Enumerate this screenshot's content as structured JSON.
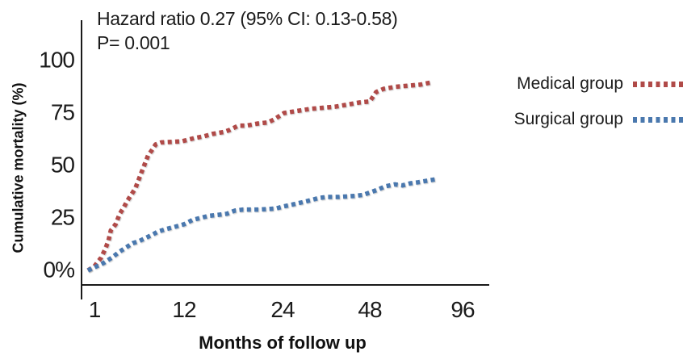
{
  "chart_data": {
    "type": "line",
    "annotation": {
      "line1": "Hazard ratio 0.27 (95% CI: 0.13-0.58)",
      "line2": "P= 0.001"
    },
    "xlabel": "Months of follow up",
    "ylabel": "Cumulative mortality (%)",
    "x_tick_labels": [
      "1",
      "12",
      "24",
      "48",
      "96"
    ],
    "x_tick_values": [
      1,
      12,
      24,
      48,
      96
    ],
    "y_tick_labels": [
      "100",
      "75",
      "50",
      "25",
      "0%"
    ],
    "y_tick_values": [
      100,
      75,
      50,
      25,
      0
    ],
    "ylim": [
      0,
      100
    ],
    "x_scale": "log-like (tick spacing approximately equal: 1, 12, 24, 48, 96)",
    "grid": false,
    "legend_position": "right",
    "line_style": "square-dotted",
    "axis_color": "#1a1a1a",
    "series": [
      {
        "name": "Medical group",
        "color": "#b04a48",
        "points_months_percent": [
          [
            0.2,
            0
          ],
          [
            1,
            2
          ],
          [
            1.8,
            6
          ],
          [
            2.3,
            10
          ],
          [
            2.7,
            14
          ],
          [
            3,
            19
          ],
          [
            3.6,
            22
          ],
          [
            4.1,
            27
          ],
          [
            4.6,
            30
          ],
          [
            5,
            33
          ],
          [
            5.5,
            36
          ],
          [
            6,
            39
          ],
          [
            6.4,
            43
          ],
          [
            6.8,
            47
          ],
          [
            7.2,
            51
          ],
          [
            7.6,
            55
          ],
          [
            8,
            57
          ],
          [
            8.5,
            60
          ],
          [
            9.2,
            61
          ],
          [
            11.7,
            61.5
          ],
          [
            13.2,
            63
          ],
          [
            14.5,
            64
          ],
          [
            15.4,
            65
          ],
          [
            16.9,
            66
          ],
          [
            17.6,
            67
          ],
          [
            18.6,
            69
          ],
          [
            19.6,
            69
          ],
          [
            21,
            70
          ],
          [
            22.2,
            70.5
          ],
          [
            23,
            72
          ],
          [
            24.4,
            75
          ],
          [
            28,
            76
          ],
          [
            31.8,
            77
          ],
          [
            35.1,
            77.5
          ],
          [
            38.4,
            78
          ],
          [
            41.8,
            79
          ],
          [
            45.1,
            80
          ],
          [
            48,
            80.5
          ],
          [
            51.3,
            85
          ],
          [
            55.1,
            86.5
          ],
          [
            61.4,
            87.5
          ],
          [
            67.6,
            88
          ],
          [
            73.9,
            88.5
          ],
          [
            79.3,
            89.5
          ]
        ]
      },
      {
        "name": "Surgical group",
        "color": "#4a78ae",
        "points_months_percent": [
          [
            0.2,
            0
          ],
          [
            1.3,
            2
          ],
          [
            2.1,
            3.5
          ],
          [
            3.1,
            6
          ],
          [
            4.1,
            9
          ],
          [
            4.9,
            11
          ],
          [
            5.7,
            13
          ],
          [
            6.5,
            14
          ],
          [
            7.3,
            15.5
          ],
          [
            8.1,
            17
          ],
          [
            8.8,
            18.5
          ],
          [
            9.6,
            19.5
          ],
          [
            10.6,
            20.5
          ],
          [
            12,
            22
          ],
          [
            13,
            24
          ],
          [
            14,
            25
          ],
          [
            15,
            26
          ],
          [
            16.2,
            26.5
          ],
          [
            17.2,
            27
          ],
          [
            18.2,
            28.5
          ],
          [
            19.2,
            29
          ],
          [
            21.2,
            29
          ],
          [
            23.2,
            29.5
          ],
          [
            24.3,
            30.5
          ],
          [
            27,
            31.5
          ],
          [
            29.5,
            32.5
          ],
          [
            31.8,
            33.5
          ],
          [
            34,
            34.5
          ],
          [
            36.2,
            35
          ],
          [
            39.5,
            35
          ],
          [
            43.9,
            35.5
          ],
          [
            46.2,
            36
          ],
          [
            49.2,
            37.5
          ],
          [
            52.2,
            38.5
          ],
          [
            55.9,
            40
          ],
          [
            60.9,
            41
          ],
          [
            64.9,
            40.5
          ],
          [
            68.9,
            41.5
          ],
          [
            73,
            42
          ],
          [
            82.5,
            43.5
          ]
        ]
      }
    ]
  }
}
